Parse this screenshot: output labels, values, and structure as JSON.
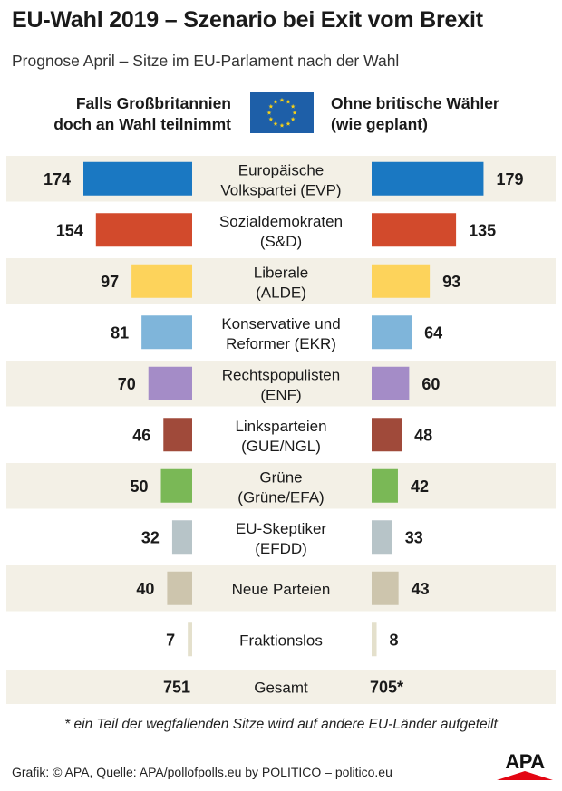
{
  "title": "EU-Wahl 2019 – Szenario bei Exit vom Brexit",
  "subtitle": "Prognose April – Sitze im EU-Parlament nach der Wahl",
  "header": {
    "left_line1": "Falls Großbritannien",
    "left_line2": "doch an Wahl teilnimmt",
    "right_line1": "Ohne britische Wähler",
    "right_line2": "(wie geplant)"
  },
  "chart_data": {
    "type": "bar",
    "title": "EU-Wahl 2019 – Szenario bei Exit vom Brexit",
    "categories": [
      {
        "line1": "Europäische",
        "line2": "Volkspartei (EVP)"
      },
      {
        "line1": "Sozialdemokraten",
        "line2": "(S&D)"
      },
      {
        "line1": "Liberale",
        "line2": "(ALDE)"
      },
      {
        "line1": "Konservative und",
        "line2": "Reformer (EKR)"
      },
      {
        "line1": "Rechtspopulisten",
        "line2": "(ENF)"
      },
      {
        "line1": "Linksparteien",
        "line2": "(GUE/NGL)"
      },
      {
        "line1": "Grüne",
        "line2": "(Grüne/EFA)"
      },
      {
        "line1": "EU-Skeptiker",
        "line2": "(EFDD)"
      },
      {
        "line1": "Neue Parteien",
        "line2": ""
      },
      {
        "line1": "Fraktionslos",
        "line2": ""
      }
    ],
    "colors": [
      "#1a78c2",
      "#d24a2c",
      "#fdd35b",
      "#7fb5da",
      "#a48cc7",
      "#a04a3a",
      "#7ab856",
      "#b7c4c8",
      "#cdc5ad",
      "#e4e0cc"
    ],
    "series": [
      {
        "name": "Falls Großbritannien doch an Wahl teilnimmt",
        "values": [
          174,
          154,
          97,
          81,
          70,
          46,
          50,
          32,
          40,
          7
        ]
      },
      {
        "name": "Ohne britische Wähler (wie geplant)",
        "values": [
          179,
          135,
          93,
          64,
          60,
          48,
          42,
          33,
          43,
          8
        ]
      }
    ],
    "total_label": "Gesamt",
    "total_left": "751",
    "total_right": "705*"
  },
  "footnote": "* ein Teil der wegfallenden Sitze wird auf andere EU-Länder aufgeteilt",
  "source": "Grafik: © APA, Quelle: APA/pollofpolls.eu by POLITICO – politico.eu",
  "logo_text": "APA"
}
